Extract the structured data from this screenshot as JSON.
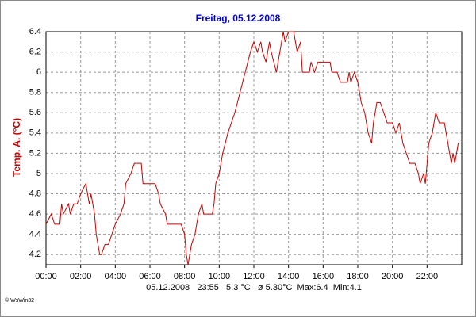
{
  "chart_data": {
    "type": "line",
    "title": "Freitag, 05.12.2008",
    "y_label": "Temp. A. (°C)",
    "footer": "05.12.2008   23:55   5.3 °C   ø 5.30°C  Max:6.4  Min:4.1",
    "credit": "© WsWin32",
    "x": [
      0,
      0.3,
      0.5,
      0.8,
      0.9,
      1.0,
      1.3,
      1.4,
      1.6,
      1.8,
      2.0,
      2.3,
      2.4,
      2.5,
      2.6,
      2.8,
      2.9,
      3.1,
      3.2,
      3.4,
      3.6,
      3.8,
      4.0,
      4.3,
      4.5,
      4.6,
      4.9,
      5.1,
      5.5,
      5.6,
      6.3,
      6.5,
      6.6,
      6.9,
      7.0,
      7.8,
      8.0,
      8.1,
      8.2,
      8.4,
      8.6,
      8.8,
      9.0,
      9.1,
      9.6,
      9.7,
      9.8,
      10.0,
      10.2,
      10.5,
      10.9,
      11.2,
      11.5,
      11.8,
      12.0,
      12.2,
      12.4,
      12.5,
      12.7,
      12.9,
      13.0,
      13.3,
      13.5,
      13.7,
      13.8,
      14.0,
      14.3,
      14.5,
      14.7,
      14.8,
      15.2,
      15.3,
      15.5,
      15.7,
      16.4,
      16.5,
      16.8,
      17.0,
      17.4,
      17.5,
      17.6,
      17.8,
      18.0,
      18.2,
      18.4,
      18.6,
      18.8,
      18.9,
      19.1,
      19.3,
      19.5,
      19.7,
      20.0,
      20.2,
      20.4,
      20.6,
      20.8,
      21.0,
      21.3,
      21.5,
      21.6,
      21.8,
      21.9,
      22.1,
      22.3,
      22.5,
      22.7,
      23.0,
      23.2,
      23.4,
      23.5,
      23.6,
      23.8,
      23.9
    ],
    "series": [
      {
        "name": "Temp. A.",
        "color": "#cc0000",
        "values": [
          4.5,
          4.6,
          4.5,
          4.5,
          4.7,
          4.6,
          4.7,
          4.6,
          4.7,
          4.7,
          4.8,
          4.9,
          4.8,
          4.7,
          4.8,
          4.6,
          4.4,
          4.2,
          4.2,
          4.3,
          4.3,
          4.4,
          4.5,
          4.6,
          4.7,
          4.9,
          5.0,
          5.1,
          5.1,
          4.9,
          4.9,
          4.8,
          4.7,
          4.6,
          4.5,
          4.5,
          4.4,
          4.2,
          4.1,
          4.3,
          4.4,
          4.6,
          4.7,
          4.6,
          4.6,
          4.7,
          4.9,
          5.0,
          5.2,
          5.4,
          5.6,
          5.8,
          6.0,
          6.2,
          6.3,
          6.2,
          6.3,
          6.2,
          6.1,
          6.3,
          6.2,
          6.0,
          6.2,
          6.4,
          6.3,
          6.4,
          6.4,
          6.2,
          6.3,
          6.0,
          6.0,
          6.1,
          6.0,
          6.1,
          6.1,
          6.0,
          6.0,
          5.9,
          5.9,
          6.0,
          5.9,
          6.0,
          5.9,
          5.7,
          5.6,
          5.4,
          5.3,
          5.5,
          5.7,
          5.7,
          5.6,
          5.5,
          5.5,
          5.4,
          5.5,
          5.3,
          5.2,
          5.1,
          5.1,
          5.0,
          4.9,
          5.0,
          4.9,
          5.3,
          5.4,
          5.6,
          5.5,
          5.5,
          5.3,
          5.1,
          5.2,
          5.1,
          5.3,
          5.3
        ]
      }
    ],
    "xlim": [
      0,
      24
    ],
    "xticks": [
      {
        "value": 0,
        "label": "00:00"
      },
      {
        "value": 2,
        "label": "02:00"
      },
      {
        "value": 4,
        "label": "04:00"
      },
      {
        "value": 6,
        "label": "06:00"
      },
      {
        "value": 8,
        "label": "08:00"
      },
      {
        "value": 10,
        "label": "10:00"
      },
      {
        "value": 12,
        "label": "12:00"
      },
      {
        "value": 14,
        "label": "14:00"
      },
      {
        "value": 16,
        "label": "16:00"
      },
      {
        "value": 18,
        "label": "18:00"
      },
      {
        "value": 20,
        "label": "20:00"
      },
      {
        "value": 22,
        "label": "22:00"
      }
    ],
    "ylim": [
      4.1,
      6.4
    ],
    "yticks": [
      4.2,
      4.4,
      4.6,
      4.8,
      5,
      5.2,
      5.4,
      5.6,
      5.8,
      6,
      6.2,
      6.4
    ],
    "grid": true,
    "title_color": "#0000cc",
    "label_color": "#cc0000"
  }
}
